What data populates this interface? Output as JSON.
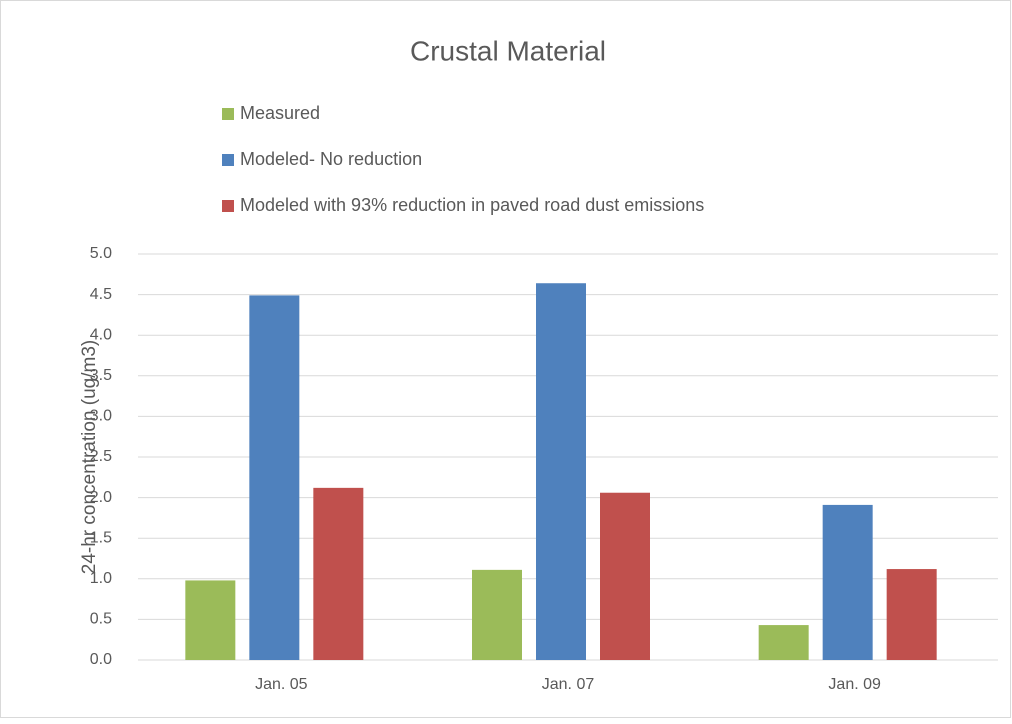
{
  "chart_data": {
    "type": "bar",
    "title": "Crustal Material",
    "y_label": "24-hr concentration (ug/m3)",
    "categories": [
      "Jan. 05",
      "Jan. 07",
      "Jan. 09"
    ],
    "series": [
      {
        "name": "Measured",
        "color": "#9bbb59",
        "values": [
          0.98,
          1.11,
          0.43
        ]
      },
      {
        "name": "Modeled- No reduction",
        "color": "#4f81bd",
        "values": [
          4.49,
          4.64,
          1.91
        ]
      },
      {
        "name": "Modeled with 93% reduction in paved road dust emissions",
        "color": "#c0504d",
        "values": [
          2.12,
          2.06,
          1.12
        ]
      }
    ],
    "ylim": [
      0,
      5
    ],
    "yticks": [
      {
        "value": 0,
        "label": "0.0"
      },
      0.5,
      {
        "value": 1,
        "label": "1.0"
      },
      1.5,
      {
        "value": 2,
        "label": "2.0"
      },
      2.5,
      {
        "value": 3,
        "label": "3.0"
      },
      3.5,
      {
        "value": 4,
        "label": "4.0"
      },
      4.5,
      {
        "value": 5,
        "label": "5.0"
      }
    ],
    "grid": true,
    "legend": "top"
  }
}
